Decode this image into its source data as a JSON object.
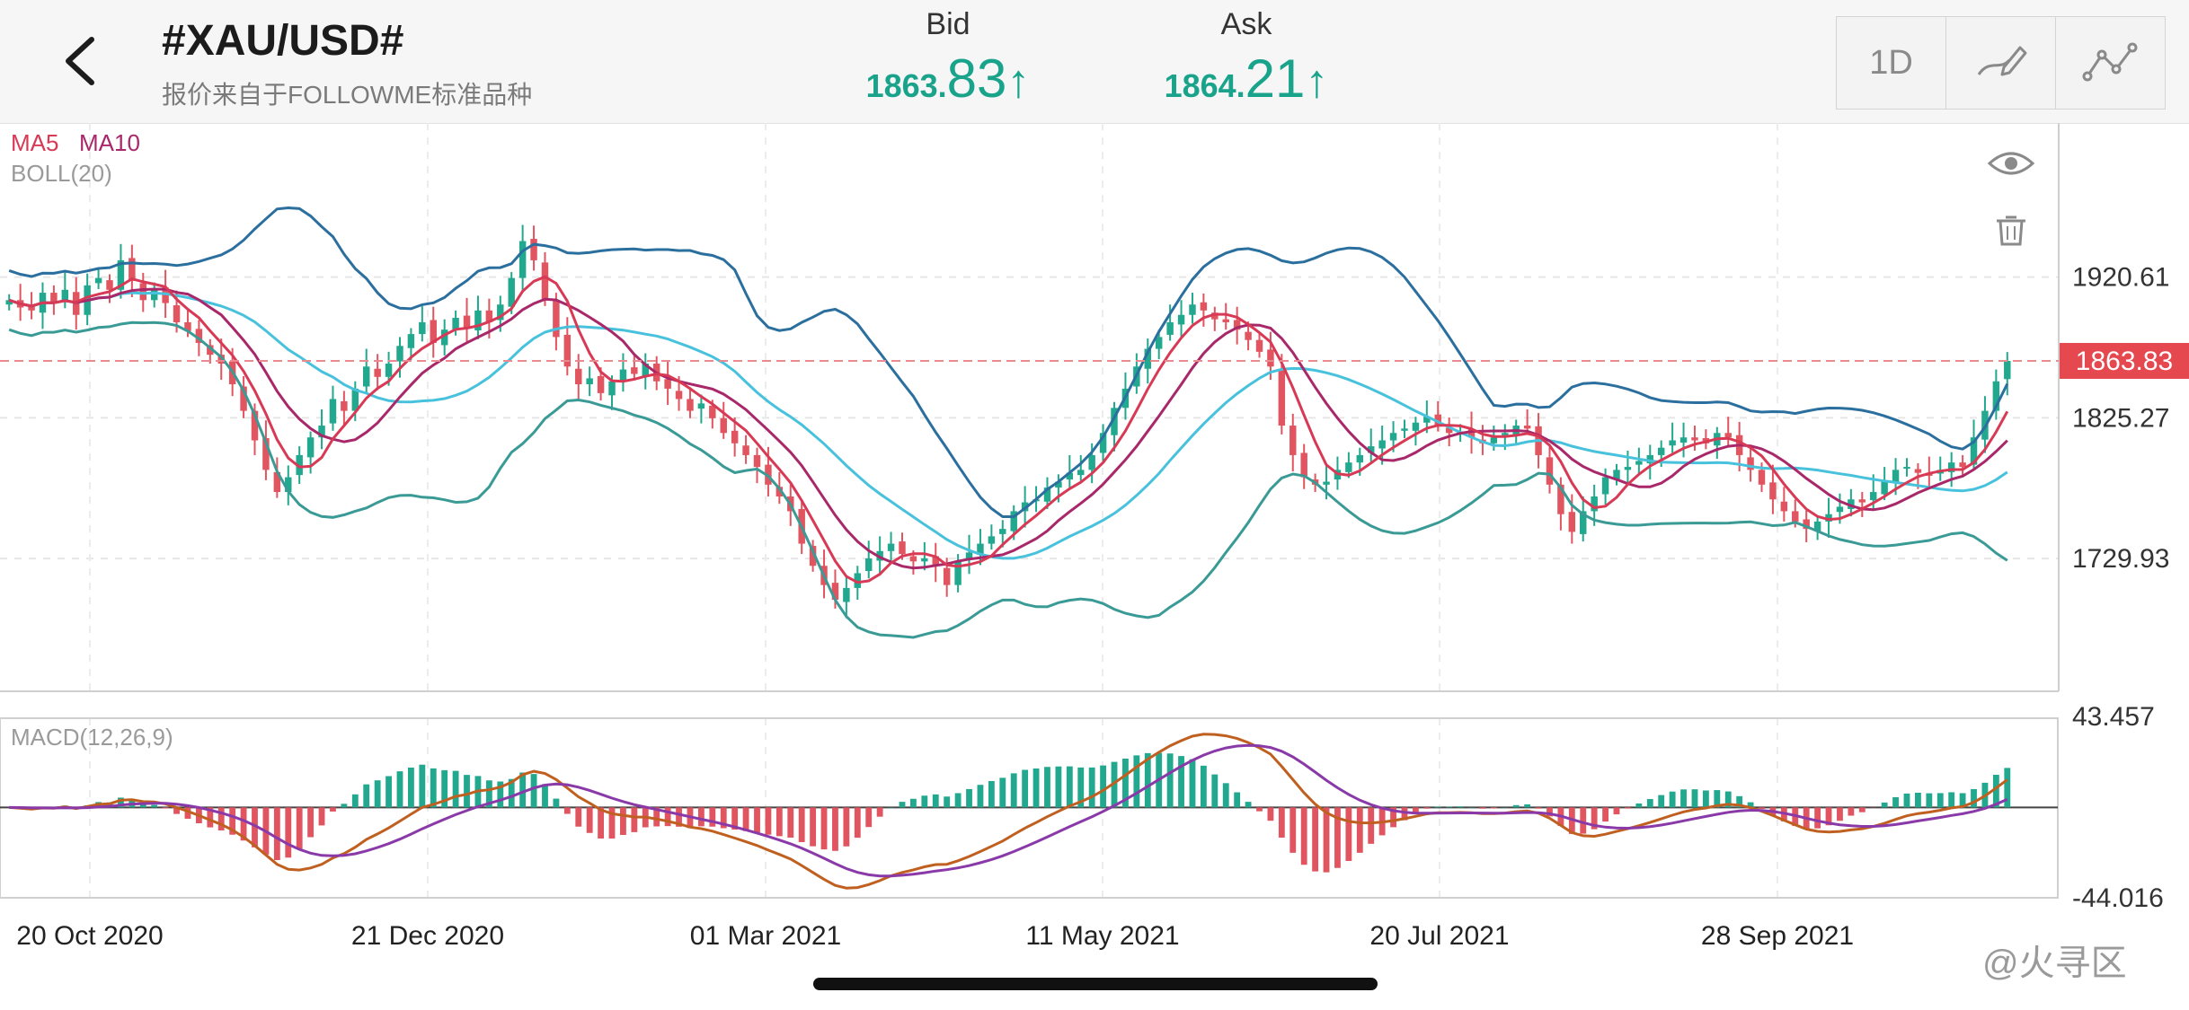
{
  "header": {
    "symbol": "#XAU/USD#",
    "source": "报价来自于FOLLOWME标准品种",
    "bid": {
      "label": "Bid",
      "small": "1863.",
      "big": "83",
      "arrow": "↑"
    },
    "ask": {
      "label": "Ask",
      "small": "1864.",
      "big": "21",
      "arrow": "↑"
    },
    "toolbar": {
      "timeframe": "1D",
      "draw_icon": "pen-icon",
      "indicator_icon": "line-chart-icon"
    }
  },
  "legend": {
    "ma5": "MA5",
    "ma10": "MA10",
    "boll": "BOLL(20)",
    "macd": "MACD(12,26,9)"
  },
  "colors": {
    "ma5": "#d83a55",
    "ma10": "#a8286a",
    "boll_mid": "#48c2dc",
    "boll_upper": "#2b6f9e",
    "boll_lower": "#3a9a95",
    "up": "#22a88e",
    "down": "#e05560",
    "dif": "#c06020",
    "dea": "#8a3aa8"
  },
  "price_axis": {
    "ticks": [
      "1920.61",
      "1825.27",
      "1729.93"
    ],
    "current": "1863.83"
  },
  "macd_axis": {
    "top": "43.457",
    "bottom": "-44.016"
  },
  "x_axis": [
    "20 Oct 2020",
    "21 Dec 2020",
    "01 Mar 2021",
    "11 May 2021",
    "20 Jul 2021",
    "28 Sep 2021"
  ],
  "watermark": "@火寻区",
  "chart_data": {
    "type": "candlestick",
    "ylim": [
      1640,
      2025
    ],
    "close": [
      1905,
      1900,
      1898,
      1910,
      1903,
      1912,
      1895,
      1915,
      1920,
      1912,
      1932,
      1918,
      1905,
      1912,
      1903,
      1890,
      1884,
      1876,
      1868,
      1862,
      1848,
      1830,
      1810,
      1790,
      1775,
      1785,
      1800,
      1812,
      1820,
      1838,
      1830,
      1845,
      1860,
      1853,
      1862,
      1874,
      1882,
      1890,
      1876,
      1885,
      1893,
      1886,
      1898,
      1890,
      1902,
      1920,
      1945,
      1932,
      1905,
      1880,
      1860,
      1848,
      1852,
      1842,
      1850,
      1858,
      1855,
      1862,
      1850,
      1845,
      1838,
      1830,
      1835,
      1825,
      1815,
      1808,
      1800,
      1792,
      1780,
      1772,
      1762,
      1740,
      1725,
      1712,
      1702,
      1710,
      1720,
      1730,
      1735,
      1740,
      1733,
      1728,
      1730,
      1725,
      1712,
      1728,
      1734,
      1740,
      1745,
      1750,
      1762,
      1768,
      1770,
      1778,
      1782,
      1788,
      1790,
      1800,
      1815,
      1832,
      1845,
      1860,
      1872,
      1880,
      1890,
      1895,
      1902,
      1898,
      1892,
      1890,
      1885,
      1878,
      1870,
      1860,
      1820,
      1800,
      1785,
      1780,
      1782,
      1790,
      1795,
      1800,
      1806,
      1810,
      1815,
      1818,
      1822,
      1826,
      1820,
      1815,
      1816,
      1812,
      1808,
      1812,
      1815,
      1820,
      1818,
      1800,
      1780,
      1760,
      1748,
      1762,
      1772,
      1785,
      1790,
      1792,
      1796,
      1800,
      1805,
      1810,
      1812,
      1810,
      1808,
      1815,
      1812,
      1800,
      1790,
      1780,
      1770,
      1762,
      1755,
      1750,
      1755,
      1760,
      1765,
      1770,
      1768,
      1775,
      1782,
      1790,
      1792,
      1788,
      1786,
      1790,
      1795,
      1792,
      1812,
      1830,
      1850,
      1863.83
    ],
    "series": [
      {
        "name": "MA5",
        "values": []
      },
      {
        "name": "MA10",
        "values": []
      },
      {
        "name": "BOLL(20)",
        "values": []
      },
      {
        "name": "MACD(12,26,9)",
        "values": []
      }
    ]
  }
}
